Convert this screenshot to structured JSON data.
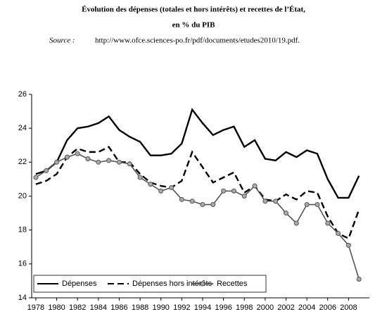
{
  "chart_data": {
    "type": "line",
    "title": [
      "Évolution des dépenses (totales et hors intérêts) et recettes de l’État,",
      "en % du PIB"
    ],
    "source_label": "Source :",
    "source_url": "http://www.ofce.sciences-po.fr/pdf/documents/etudes2010/19.pdf.",
    "x": [
      1978,
      1979,
      1980,
      1981,
      1982,
      1983,
      1984,
      1985,
      1986,
      1987,
      1988,
      1989,
      1990,
      1991,
      1992,
      1993,
      1994,
      1995,
      1996,
      1997,
      1998,
      1999,
      2000,
      2001,
      2002,
      2003,
      2004,
      2005,
      2006,
      2007,
      2008,
      2009
    ],
    "series": [
      {
        "name": "Dépenses",
        "color": "#000000",
        "style": "solid",
        "marker": "none",
        "values": [
          21.3,
          21.5,
          22.0,
          23.3,
          24.0,
          24.1,
          24.3,
          24.7,
          23.9,
          23.5,
          23.2,
          22.4,
          22.4,
          22.5,
          23.1,
          25.1,
          24.3,
          23.6,
          23.9,
          24.1,
          22.9,
          23.3,
          22.2,
          22.1,
          22.6,
          22.3,
          22.7,
          22.5,
          21.0,
          19.9,
          19.9,
          21.2
        ]
      },
      {
        "name": "Dépenses hors intérêts",
        "color": "#000000",
        "style": "dashed",
        "marker": "none",
        "values": [
          20.7,
          20.9,
          21.3,
          22.3,
          22.8,
          22.6,
          22.6,
          22.9,
          22.0,
          22.0,
          21.3,
          20.8,
          20.6,
          20.5,
          20.9,
          22.6,
          21.7,
          20.8,
          21.1,
          21.4,
          20.2,
          20.6,
          19.8,
          19.7,
          20.1,
          19.8,
          20.3,
          20.2,
          18.8,
          17.8,
          17.5,
          19.2
        ]
      },
      {
        "name": "Recettes",
        "color": "#555555",
        "style": "solid",
        "marker": "circle",
        "values": [
          21.1,
          21.5,
          22.0,
          22.3,
          22.5,
          22.2,
          22.0,
          22.1,
          22.0,
          21.9,
          21.1,
          20.7,
          20.3,
          20.5,
          19.8,
          19.7,
          19.5,
          19.5,
          20.3,
          20.3,
          20.0,
          20.6,
          19.7,
          19.7,
          19.0,
          18.4,
          19.5,
          19.5,
          18.4,
          17.8,
          17.1,
          15.1
        ]
      }
    ],
    "xlim": [
      1977.6,
      2010
    ],
    "xticks": [
      1978,
      1980,
      1982,
      1984,
      1986,
      1988,
      1990,
      1992,
      1994,
      1996,
      1998,
      2000,
      2002,
      2004,
      2006,
      2008
    ],
    "ylim": [
      14,
      26
    ],
    "yticks": [
      14,
      16,
      18,
      20,
      22,
      24,
      26
    ],
    "grid": false,
    "legend": "lower-left"
  }
}
